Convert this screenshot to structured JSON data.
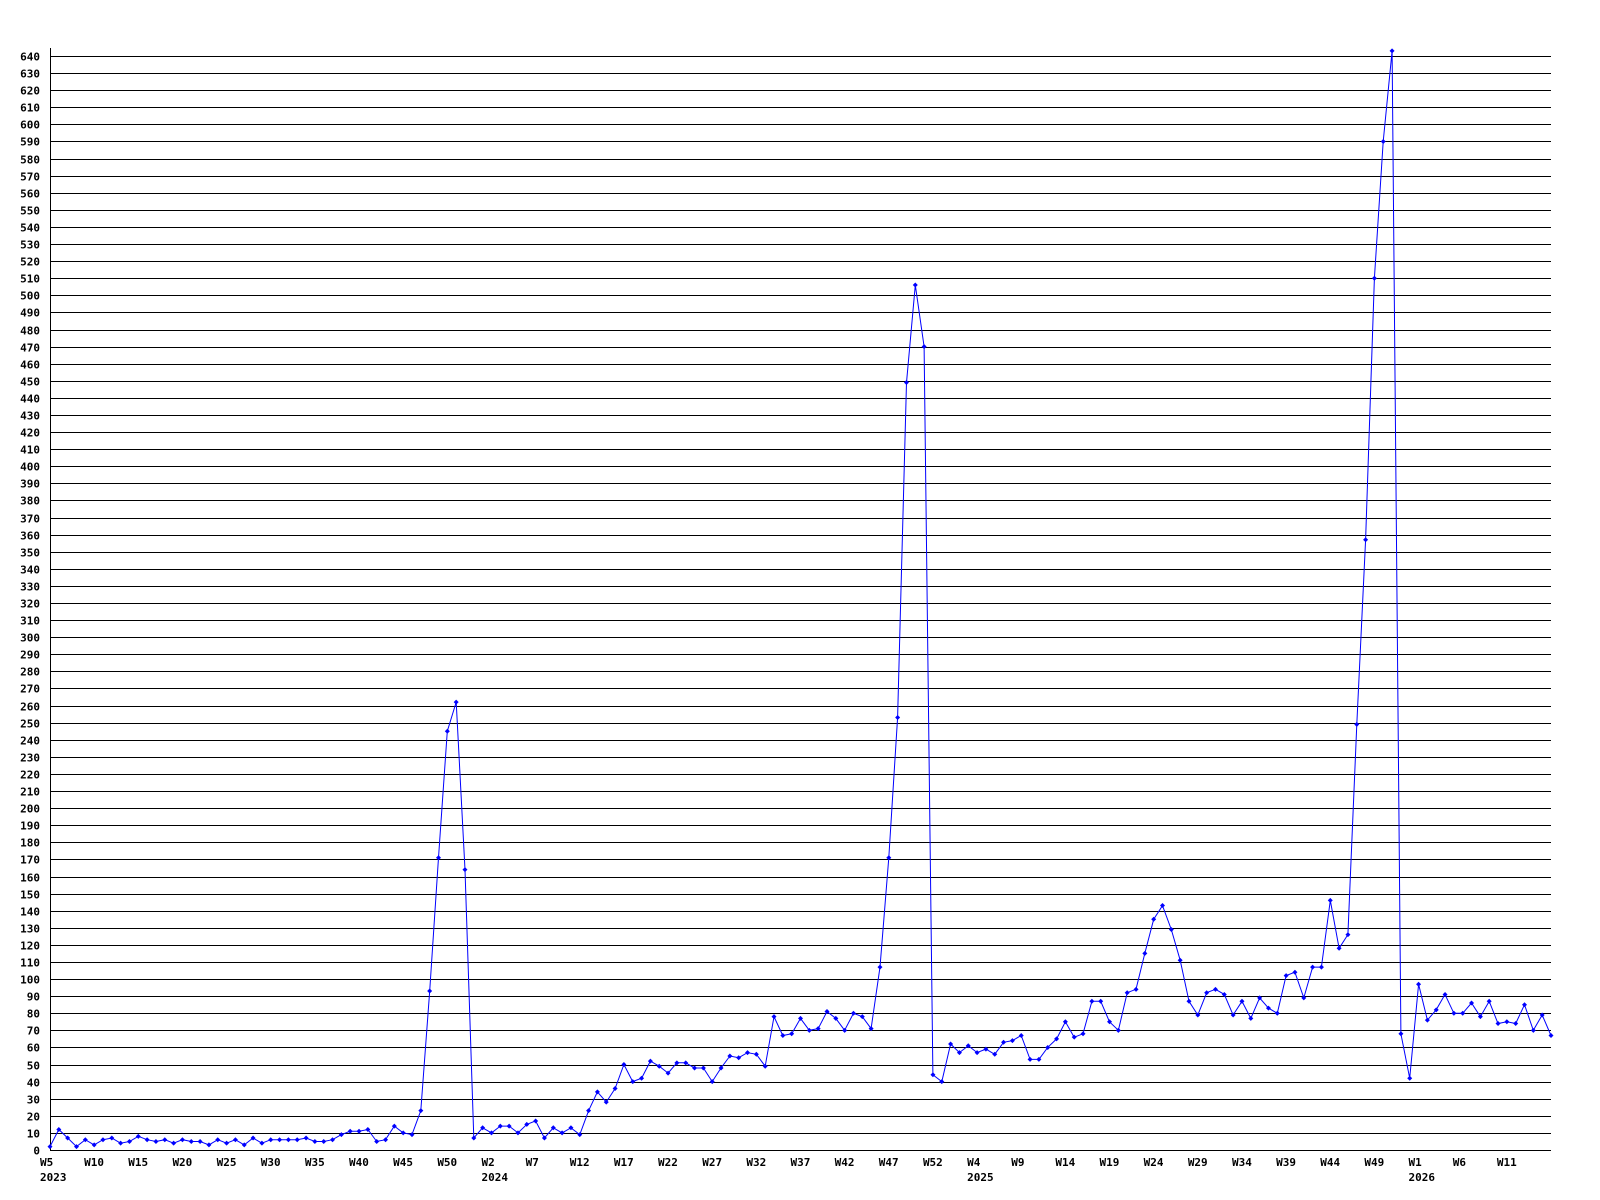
{
  "chart_data": {
    "type": "line",
    "title": "",
    "xlabel": "",
    "ylabel": "",
    "ylim": [
      0,
      644
    ],
    "y_tick_step": 10,
    "y_tick_max": 640,
    "grid": "horizontal",
    "legend": "none",
    "colors": {
      "line": "#0000ff",
      "marker": "#0000ff",
      "grid": "#000000",
      "axis": "#000000"
    },
    "x_ticks": [
      {
        "label": "W5",
        "year": "2023"
      },
      {
        "label": "W10"
      },
      {
        "label": "W15"
      },
      {
        "label": "W20"
      },
      {
        "label": "W25"
      },
      {
        "label": "W30"
      },
      {
        "label": "W35"
      },
      {
        "label": "W40"
      },
      {
        "label": "W45"
      },
      {
        "label": "W50"
      },
      {
        "label": "W2",
        "year": "2024"
      },
      {
        "label": "W7"
      },
      {
        "label": "W12"
      },
      {
        "label": "W17"
      },
      {
        "label": "W22"
      },
      {
        "label": "W27"
      },
      {
        "label": "W32"
      },
      {
        "label": "W37"
      },
      {
        "label": "W42"
      },
      {
        "label": "W47"
      },
      {
        "label": "W52"
      },
      {
        "label": "W4",
        "year": "2025"
      },
      {
        "label": "W9"
      },
      {
        "label": "W14"
      },
      {
        "label": "W19"
      },
      {
        "label": "W24"
      },
      {
        "label": "W29"
      },
      {
        "label": "W34"
      },
      {
        "label": "W39"
      },
      {
        "label": "W44"
      },
      {
        "label": "W49"
      },
      {
        "label": "W1",
        "year": "2026"
      },
      {
        "label": "W6"
      },
      {
        "label": "W11"
      }
    ],
    "values": [
      2,
      12,
      7,
      2,
      6,
      3,
      6,
      7,
      4,
      5,
      8,
      6,
      5,
      6,
      4,
      6,
      5,
      5,
      3,
      6,
      4,
      6,
      3,
      7,
      4,
      6,
      6,
      6,
      6,
      7,
      5,
      5,
      6,
      9,
      11,
      11,
      12,
      5,
      6,
      14,
      10,
      9,
      23,
      93,
      171,
      245,
      262,
      164,
      7,
      13,
      10,
      14,
      14,
      10,
      15,
      17,
      7,
      13,
      10,
      13,
      9,
      23,
      34,
      28,
      36,
      50,
      40,
      42,
      52,
      49,
      45,
      51,
      51,
      48,
      48,
      40,
      48,
      55,
      54,
      57,
      56,
      49,
      78,
      67,
      68,
      77,
      70,
      71,
      81,
      77,
      70,
      80,
      78,
      71,
      107,
      171,
      253,
      449,
      506,
      470,
      44,
      40,
      62,
      57,
      61,
      57,
      59,
      56,
      63,
      64,
      67,
      53,
      53,
      60,
      65,
      75,
      66,
      68,
      87,
      87,
      75,
      70,
      92,
      94,
      115,
      135,
      143,
      129,
      111,
      87,
      79,
      92,
      94,
      91,
      79,
      87,
      77,
      89,
      83,
      80,
      102,
      104,
      89,
      107,
      107,
      146,
      118,
      126,
      249,
      357,
      510,
      590,
      643,
      68,
      42,
      97,
      76,
      82,
      91,
      80,
      80,
      86,
      78,
      87,
      74,
      75,
      74,
      85,
      70,
      79,
      67
    ]
  }
}
